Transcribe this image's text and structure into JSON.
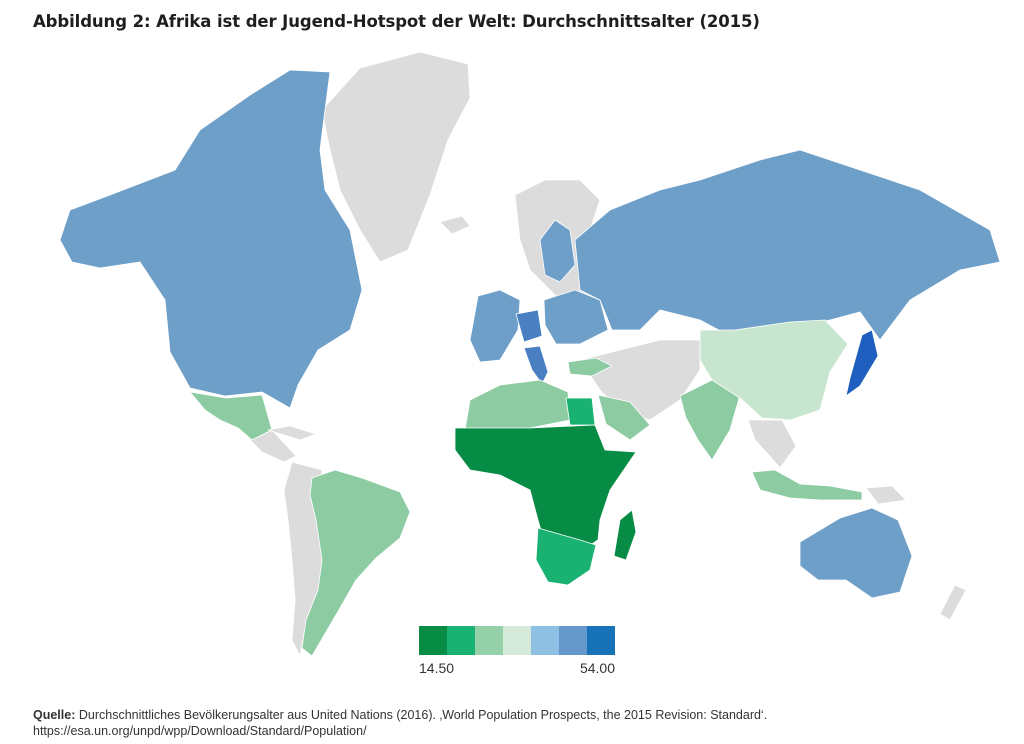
{
  "title": "Abbildung 2: Afrika ist der Jugend-Hotspot der Welt: Durchschnittsalter (2015)",
  "legend": {
    "min_label": "14.50",
    "max_label": "54.00",
    "colors": [
      "#078c45",
      "#19b272",
      "#94d1a8",
      "#d5eadb",
      "#8ec0e4",
      "#6699cb",
      "#1772b8"
    ]
  },
  "region_colors": {
    "nodata": "#dcdcdc",
    "north_america": "#6e9fc9",
    "mexico_central": "#8dcca3",
    "south_america": "#8dcca3",
    "europe": "#6e9fc9",
    "germany_italy": "#4a7fc2",
    "russia": "#6e9fc9",
    "north_africa": "#8dcca3",
    "egypt": "#19b272",
    "sub_saharan": "#078c45",
    "southern_africa": "#19b272",
    "middle_east": "#c8e6cf",
    "south_asia": "#8dcca3",
    "china": "#c8e6cf",
    "japan": "#1f5fc0",
    "southeast_asia": "#8dcca3",
    "australia": "#6e9fc9"
  },
  "source": {
    "label": "Quelle:",
    "text": " Durchschnittliches Bevölkerungsalter aus United Nations (2016). ‚World Population Prospects, the 2015 Revision: Standard‘.",
    "url": "https://esa.un.org/unpd/wpp/Download/Standard/Population/"
  }
}
